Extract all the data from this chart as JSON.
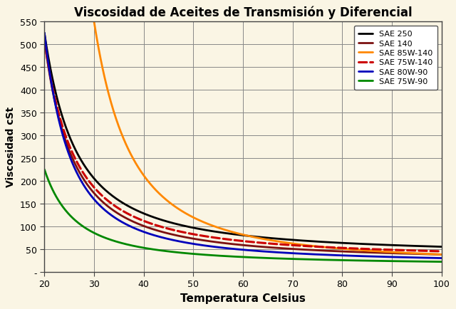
{
  "title": "Viscosidad de Aceites de Transmisión y Diferencial",
  "xlabel": "Temperatura Celsius",
  "ylabel": "Viscosidad cSt",
  "xlim": [
    20,
    100
  ],
  "ylim": [
    0,
    550
  ],
  "yticks": [
    0,
    50,
    100,
    150,
    200,
    250,
    300,
    350,
    400,
    450,
    500,
    550
  ],
  "xticks": [
    20,
    30,
    40,
    50,
    60,
    70,
    80,
    90,
    100
  ],
  "background_color": "#faf5e4",
  "grid_color": "#888888",
  "series": [
    {
      "label": "SAE 250",
      "color": "#000000",
      "linestyle": "solid",
      "linewidth": 2.0,
      "v1": 525,
      "T1": 20,
      "v2": 55,
      "T2": 100
    },
    {
      "label": "SAE 140",
      "color": "#7B1010",
      "linestyle": "solid",
      "linewidth": 2.0,
      "v1": 510,
      "T1": 20,
      "v2": 38,
      "T2": 100
    },
    {
      "label": "SAE 85W-140",
      "color": "#FF8800",
      "linestyle": "solid",
      "linewidth": 2.0,
      "v1": 550,
      "T1": 30,
      "v2": 38,
      "T2": 100
    },
    {
      "label": "SAE 75W-140",
      "color": "#CC0000",
      "linestyle": "dashed",
      "linewidth": 2.2,
      "v1": 510,
      "T1": 20,
      "v2": 45,
      "T2": 100
    },
    {
      "label": "SAE 80W-90",
      "color": "#0000BB",
      "linestyle": "solid",
      "linewidth": 2.0,
      "v1": 525,
      "T1": 20,
      "v2": 30,
      "T2": 100
    },
    {
      "label": "SAE 75W-90",
      "color": "#008800",
      "linestyle": "solid",
      "linewidth": 2.0,
      "v1": 225,
      "T1": 20,
      "v2": 22,
      "T2": 100
    }
  ]
}
